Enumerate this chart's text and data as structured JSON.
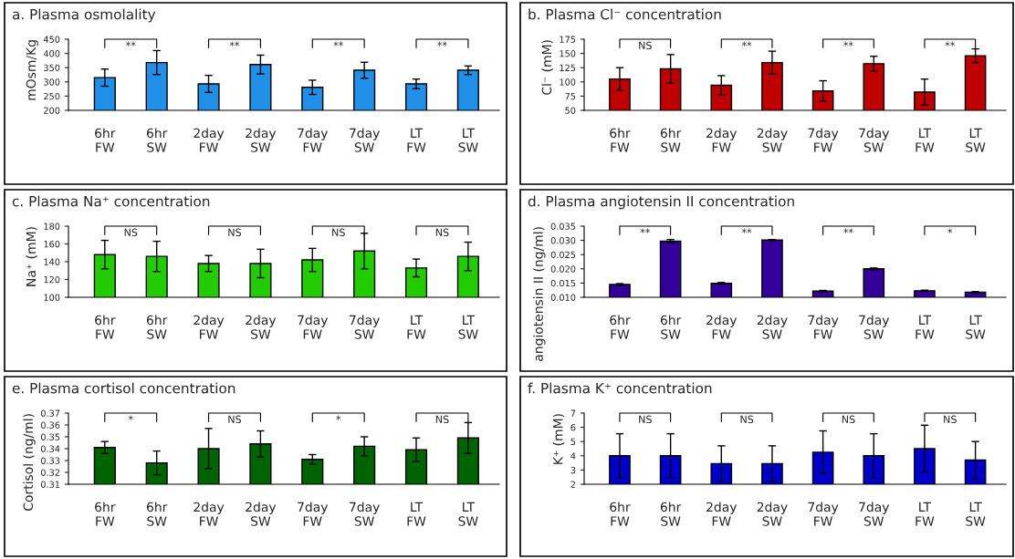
{
  "chart_data": [
    {
      "type": "bar",
      "title": "a. Plasma osmolality",
      "ylabel": "mOsm/Kg",
      "categories": [
        "6hr\nFW",
        "6hr\nSW",
        "2day\nFW",
        "2day\nSW",
        "7day\nFW",
        "7day\nSW",
        "LT\nFW",
        "LT\nSW"
      ],
      "color": "#1f8fe8",
      "values": [
        315,
        368,
        293,
        361,
        281,
        341,
        293,
        341
      ],
      "errors": [
        30,
        42,
        30,
        33,
        25,
        28,
        17,
        15
      ],
      "ylim": [
        200,
        450
      ],
      "yticks": [
        200,
        250,
        300,
        350,
        400,
        450
      ],
      "annotations": [
        "**",
        "**",
        "**",
        "**"
      ],
      "grid": false
    },
    {
      "type": "bar",
      "title": "b. Plasma Cl⁻ concentration",
      "ylabel": "Cl⁻ (mM)",
      "categories": [
        "6hr\nFW",
        "6hr\nSW",
        "2day\nFW",
        "2day\nSW",
        "7day\nFW",
        "7day\nSW",
        "LT\nFW",
        "LT\nSW"
      ],
      "color": "#c00000",
      "values": [
        105,
        123,
        94,
        134,
        84,
        132,
        82,
        146
      ],
      "errors": [
        20,
        25,
        17,
        20,
        18,
        13,
        23,
        12
      ],
      "ylim": [
        50,
        175
      ],
      "yticks": [
        50,
        75,
        100,
        125,
        150,
        175
      ],
      "annotations": [
        "NS",
        "**",
        "**",
        "**"
      ],
      "grid": false
    },
    {
      "type": "bar",
      "title": "c. Plasma Na⁺ concentration",
      "ylabel": "Na⁺ (mM)",
      "categories": [
        "6hr\nFW",
        "6hr\nSW",
        "2day\nFW",
        "2day\nSW",
        "7day\nFW",
        "7day\nSW",
        "LT\nFW",
        "LT\nSW"
      ],
      "color": "#22cc00",
      "values": [
        148,
        146,
        138,
        138,
        142,
        152,
        133,
        146
      ],
      "errors": [
        16,
        17,
        9,
        16,
        13,
        20,
        10,
        16
      ],
      "ylim": [
        100,
        180
      ],
      "yticks": [
        100,
        120,
        140,
        160,
        180
      ],
      "annotations": [
        "NS",
        "NS",
        "NS",
        "NS"
      ],
      "grid": false
    },
    {
      "type": "bar",
      "title": "d. Plasma angiotensin II concentration",
      "ylabel": "angiotensin II (ng/ml)",
      "categories": [
        "6hr\nFW",
        "6hr\nSW",
        "2day\nFW",
        "2day\nSW",
        "7day\nFW",
        "7day\nSW",
        "LT\nFW",
        "LT\nSW"
      ],
      "color": "#330099",
      "values": [
        0.0145,
        0.0297,
        0.0149,
        0.0301,
        0.0122,
        0.02,
        0.0123,
        0.0118
      ],
      "errors": [
        0.0003,
        0.0006,
        0.0003,
        0.0002,
        0.0002,
        0.0003,
        0.0002,
        0.0002
      ],
      "ylim": [
        0.01,
        0.035
      ],
      "yticks": [
        {
          "value": 0.01,
          "label": "0.010"
        },
        {
          "value": 0.015,
          "label": "0.015"
        },
        {
          "value": 0.02,
          "label": "0.020"
        },
        {
          "value": 0.025,
          "label": "0.025"
        },
        {
          "value": 0.03,
          "label": "0.030"
        },
        {
          "value": 0.035,
          "label": "0.035"
        }
      ],
      "annotations": [
        "**",
        "**",
        "**",
        "*"
      ],
      "grid": false
    },
    {
      "type": "bar",
      "title": "e. Plasma cortisol concentration",
      "ylabel": "Cortisol (ng/ml)",
      "categories": [
        "6hr\nFW",
        "6hr\nSW",
        "2day\nFW",
        "2day\nSW",
        "7day\nFW",
        "7day\nSW",
        "LT\nFW",
        "LT\nSW"
      ],
      "color": "#006400",
      "values": [
        0.341,
        0.328,
        0.34,
        0.344,
        0.331,
        0.342,
        0.339,
        0.349
      ],
      "errors": [
        0.005,
        0.01,
        0.017,
        0.011,
        0.004,
        0.008,
        0.01,
        0.013
      ],
      "ylim": [
        0.31,
        0.37
      ],
      "yticks": [
        0.31,
        0.32,
        0.33,
        0.34,
        0.35,
        0.36,
        0.37
      ],
      "annotations": [
        "*",
        "NS",
        "*",
        "NS"
      ],
      "grid": false
    },
    {
      "type": "bar",
      "title": "f. Plasma K⁺ concentration",
      "ylabel": "K⁺ (mM)",
      "categories": [
        "6hr\nFW",
        "6hr\nSW",
        "2day\nFW",
        "2day\nSW",
        "7day\nFW",
        "7day\nSW",
        "LT\nFW",
        "LT\nSW"
      ],
      "color": "#0000cc",
      "values": [
        4.0,
        4.0,
        3.45,
        3.45,
        4.25,
        4.0,
        4.5,
        3.7
      ],
      "errors": [
        1.55,
        1.55,
        1.25,
        1.25,
        1.5,
        1.55,
        1.65,
        1.3
      ],
      "ylim": [
        2,
        7
      ],
      "yticks": [
        2,
        3,
        4,
        5,
        6,
        7
      ],
      "annotations": [
        "NS",
        "NS",
        "NS",
        "NS"
      ],
      "grid": false
    }
  ]
}
